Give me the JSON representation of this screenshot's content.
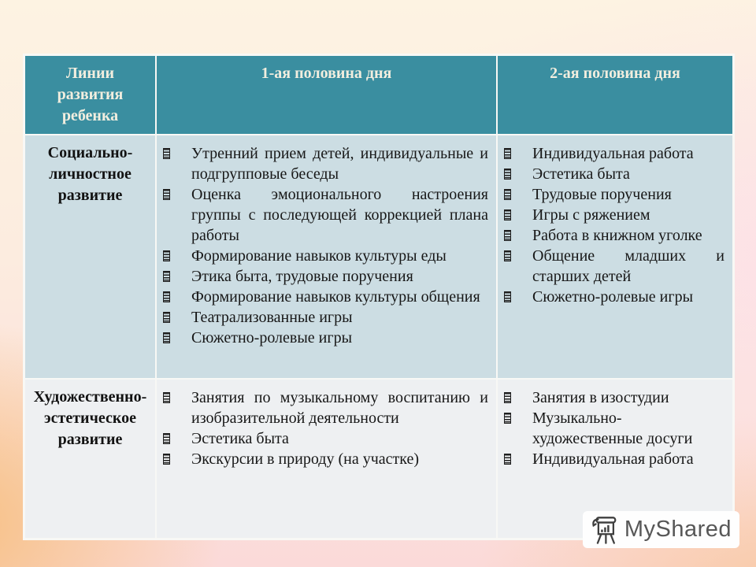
{
  "slide": {
    "table": {
      "headers": [
        {
          "label": "Линии развития ребенка"
        },
        {
          "label": "1-ая половина дня"
        },
        {
          "label": "2-ая половина дня"
        }
      ],
      "rows": [
        {
          "category": "Социально-личностное развитие",
          "first_half": [
            "Утренний прием детей, индивидуальные и подгрупповые беседы",
            "Оценка эмоционального настроения группы с последующей коррекцией плана работы",
            "Формирование навыков культуры еды",
            "Этика быта, трудовые поручения",
            "Формирование навыков культуры общения",
            "Театрализованные игры",
            "Сюжетно-ролевые игры"
          ],
          "second_half": [
            "Индивидуальная работа",
            "Эстетика быта",
            "Трудовые поручения",
            "Игры с ряжением",
            "Работа в книжном уголке",
            "Общение младших и старших детей",
            "Сюжетно-ролевые игры"
          ]
        },
        {
          "category": "Художественно-эстетическое развитие",
          "first_half": [
            "Занятия по музыкальному воспитанию и изобразительной деятельности",
            "Эстетика быта",
            "Экскурсии в природу (на участке)"
          ],
          "second_half": [
            "Занятия в изостудии",
            "Музыкально-художественные досуги",
            "Индивидуальная работа"
          ]
        }
      ]
    },
    "watermark": {
      "brand": "MyShared",
      "logo": "flipchart-bar-chart-icon"
    },
    "colors": {
      "header_bg": "#3a8ea0",
      "header_text": "#f2eedf",
      "row1_bg": "#ccdde3",
      "row2_bg": "#eef0f2",
      "table_border": "#f8f8f5",
      "body_text": "#171717",
      "watermark_text": "#575757"
    }
  }
}
